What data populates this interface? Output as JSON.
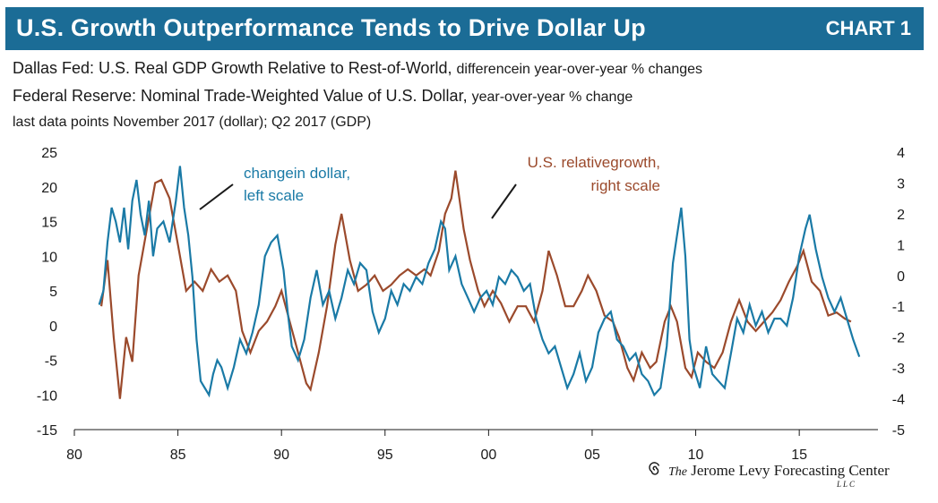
{
  "header": {
    "title": "U.S. Growth Outperformance Tends to Drive Dollar Up",
    "tag": "CHART 1"
  },
  "subtitle": {
    "line1_main": "Dallas Fed: U.S. Real GDP Growth Relative to Rest-of-World,",
    "line1_small": "differencein year-over-year % changes",
    "line2_main": "Federal Reserve: Nominal Trade-Weighted Value of U.S. Dollar,",
    "line2_small": "year-over-year % change",
    "line3": "last data points November 2017 (dollar); Q2 2017 (GDP)"
  },
  "logo": {
    "the": "The",
    "name": "Jerome Levy Forecasting Center",
    "llc": "LLC"
  },
  "colors": {
    "header_bg": "#1b6c96",
    "dollar": "#1a7aa6",
    "growth": "#9b4a2c"
  },
  "chart_data": {
    "type": "line",
    "x_range": [
      1980,
      2018.8
    ],
    "x_ticks": [
      1980,
      1985,
      1990,
      1995,
      2000,
      2005,
      2010,
      2015
    ],
    "x_tick_labels": [
      "80",
      "85",
      "90",
      "95",
      "00",
      "05",
      "10",
      "15"
    ],
    "left_axis": {
      "range": [
        -15,
        25
      ],
      "ticks": [
        -15,
        -10,
        -5,
        0,
        5,
        10,
        15,
        20,
        25
      ],
      "tick_labels": [
        "-15",
        "-10",
        "-5",
        "0",
        "5",
        "10",
        "15",
        "20",
        "25"
      ]
    },
    "right_axis": {
      "range": [
        -5,
        4
      ],
      "ticks": [
        -5,
        -4,
        -3,
        -2,
        -1,
        0,
        1,
        2,
        3,
        4
      ],
      "tick_labels": [
        "-5",
        "-4",
        "-3",
        "-2",
        "-1",
        "0",
        "1",
        "2",
        "3",
        "4"
      ]
    },
    "series": [
      {
        "name": "change in dollar",
        "axis": "left",
        "annotation": [
          "changein dollar,",
          "left scale"
        ],
        "points": [
          [
            1981.2,
            3
          ],
          [
            1981.4,
            5
          ],
          [
            1981.6,
            12
          ],
          [
            1981.8,
            17
          ],
          [
            1982.0,
            15
          ],
          [
            1982.2,
            12
          ],
          [
            1982.4,
            17
          ],
          [
            1982.6,
            11
          ],
          [
            1982.8,
            18
          ],
          [
            1983.0,
            21
          ],
          [
            1983.2,
            16
          ],
          [
            1983.4,
            13
          ],
          [
            1983.6,
            18
          ],
          [
            1983.8,
            10
          ],
          [
            1984.0,
            14
          ],
          [
            1984.3,
            15
          ],
          [
            1984.6,
            12
          ],
          [
            1984.9,
            18
          ],
          [
            1985.1,
            23
          ],
          [
            1985.3,
            17
          ],
          [
            1985.5,
            13
          ],
          [
            1985.7,
            7
          ],
          [
            1985.9,
            -2
          ],
          [
            1986.1,
            -8
          ],
          [
            1986.3,
            -9
          ],
          [
            1986.5,
            -10
          ],
          [
            1986.7,
            -7
          ],
          [
            1986.9,
            -5
          ],
          [
            1987.1,
            -6
          ],
          [
            1987.4,
            -9
          ],
          [
            1987.7,
            -6
          ],
          [
            1988.0,
            -2
          ],
          [
            1988.3,
            -4
          ],
          [
            1988.6,
            -1
          ],
          [
            1988.9,
            3
          ],
          [
            1989.2,
            10
          ],
          [
            1989.5,
            12
          ],
          [
            1989.8,
            13
          ],
          [
            1990.1,
            8
          ],
          [
            1990.3,
            2
          ],
          [
            1990.5,
            -3
          ],
          [
            1990.8,
            -5
          ],
          [
            1991.1,
            -2
          ],
          [
            1991.4,
            4
          ],
          [
            1991.7,
            8
          ],
          [
            1992.0,
            3
          ],
          [
            1992.3,
            5
          ],
          [
            1992.6,
            1
          ],
          [
            1992.9,
            4
          ],
          [
            1993.2,
            8
          ],
          [
            1993.5,
            6
          ],
          [
            1993.8,
            9
          ],
          [
            1994.1,
            8
          ],
          [
            1994.4,
            2
          ],
          [
            1994.7,
            -1
          ],
          [
            1995.0,
            1
          ],
          [
            1995.3,
            5
          ],
          [
            1995.6,
            3
          ],
          [
            1995.9,
            6
          ],
          [
            1996.2,
            5
          ],
          [
            1996.5,
            7
          ],
          [
            1996.8,
            6
          ],
          [
            1997.1,
            9
          ],
          [
            1997.4,
            11
          ],
          [
            1997.7,
            15
          ],
          [
            1997.9,
            14
          ],
          [
            1998.1,
            8
          ],
          [
            1998.4,
            10
          ],
          [
            1998.7,
            6
          ],
          [
            1999.0,
            4
          ],
          [
            1999.3,
            2
          ],
          [
            1999.6,
            4
          ],
          [
            1999.9,
            5
          ],
          [
            2000.2,
            3
          ],
          [
            2000.5,
            7
          ],
          [
            2000.8,
            6
          ],
          [
            2001.1,
            8
          ],
          [
            2001.4,
            7
          ],
          [
            2001.7,
            5
          ],
          [
            2002.0,
            6
          ],
          [
            2002.3,
            1
          ],
          [
            2002.6,
            -2
          ],
          [
            2002.9,
            -4
          ],
          [
            2003.2,
            -3
          ],
          [
            2003.5,
            -6
          ],
          [
            2003.8,
            -9
          ],
          [
            2004.1,
            -7
          ],
          [
            2004.4,
            -4
          ],
          [
            2004.7,
            -8
          ],
          [
            2005.0,
            -6
          ],
          [
            2005.3,
            -1
          ],
          [
            2005.6,
            1
          ],
          [
            2005.9,
            2
          ],
          [
            2006.2,
            -2
          ],
          [
            2006.5,
            -3
          ],
          [
            2006.8,
            -5
          ],
          [
            2007.1,
            -4
          ],
          [
            2007.4,
            -7
          ],
          [
            2007.7,
            -8
          ],
          [
            2008.0,
            -10
          ],
          [
            2008.3,
            -9
          ],
          [
            2008.6,
            -3
          ],
          [
            2008.9,
            9
          ],
          [
            2009.1,
            13
          ],
          [
            2009.3,
            17
          ],
          [
            2009.5,
            10
          ],
          [
            2009.7,
            -2
          ],
          [
            2009.9,
            -6
          ],
          [
            2010.2,
            -9
          ],
          [
            2010.5,
            -3
          ],
          [
            2010.8,
            -7
          ],
          [
            2011.1,
            -8
          ],
          [
            2011.4,
            -9
          ],
          [
            2011.7,
            -4
          ],
          [
            2012.0,
            1
          ],
          [
            2012.3,
            -1
          ],
          [
            2012.6,
            3
          ],
          [
            2012.9,
            0
          ],
          [
            2013.2,
            2
          ],
          [
            2013.5,
            -1
          ],
          [
            2013.8,
            1
          ],
          [
            2014.1,
            1
          ],
          [
            2014.4,
            0
          ],
          [
            2014.7,
            4
          ],
          [
            2015.0,
            10
          ],
          [
            2015.3,
            14
          ],
          [
            2015.5,
            16
          ],
          [
            2015.8,
            11
          ],
          [
            2016.1,
            7
          ],
          [
            2016.4,
            4
          ],
          [
            2016.7,
            2
          ],
          [
            2017.0,
            4
          ],
          [
            2017.3,
            1
          ],
          [
            2017.6,
            -2
          ],
          [
            2017.9,
            -4.5
          ]
        ]
      },
      {
        "name": "U.S. relative growth",
        "axis": "right",
        "annotation": [
          "U.S. relativegrowth,",
          "right scale"
        ],
        "points": [
          [
            1981.3,
            -1
          ],
          [
            1981.6,
            0.5
          ],
          [
            1981.9,
            -2
          ],
          [
            1982.2,
            -4
          ],
          [
            1982.5,
            -2
          ],
          [
            1982.8,
            -2.8
          ],
          [
            1983.1,
            0
          ],
          [
            1983.5,
            1.5
          ],
          [
            1983.9,
            3
          ],
          [
            1984.2,
            3.1
          ],
          [
            1984.6,
            2.5
          ],
          [
            1985.0,
            1
          ],
          [
            1985.4,
            -0.5
          ],
          [
            1985.8,
            -0.2
          ],
          [
            1986.2,
            -0.5
          ],
          [
            1986.6,
            0.2
          ],
          [
            1987.0,
            -0.2
          ],
          [
            1987.4,
            0
          ],
          [
            1987.8,
            -0.5
          ],
          [
            1988.1,
            -1.8
          ],
          [
            1988.5,
            -2.5
          ],
          [
            1988.9,
            -1.8
          ],
          [
            1989.3,
            -1.5
          ],
          [
            1989.7,
            -1
          ],
          [
            1990.0,
            -0.5
          ],
          [
            1990.4,
            -1.5
          ],
          [
            1990.8,
            -2.5
          ],
          [
            1991.2,
            -3.5
          ],
          [
            1991.4,
            -3.7
          ],
          [
            1991.8,
            -2.5
          ],
          [
            1992.2,
            -1
          ],
          [
            1992.6,
            1
          ],
          [
            1992.9,
            2
          ],
          [
            1993.3,
            0.5
          ],
          [
            1993.7,
            -0.5
          ],
          [
            1994.1,
            -0.3
          ],
          [
            1994.5,
            0
          ],
          [
            1994.9,
            -0.5
          ],
          [
            1995.3,
            -0.3
          ],
          [
            1995.7,
            0
          ],
          [
            1996.1,
            0.2
          ],
          [
            1996.5,
            0
          ],
          [
            1996.9,
            0.2
          ],
          [
            1997.2,
            0
          ],
          [
            1997.6,
            0.8
          ],
          [
            1997.9,
            2
          ],
          [
            1998.2,
            2.5
          ],
          [
            1998.4,
            3.4
          ],
          [
            1998.8,
            1.5
          ],
          [
            1999.1,
            0.5
          ],
          [
            1999.5,
            -0.5
          ],
          [
            1999.8,
            -1
          ],
          [
            2000.2,
            -0.5
          ],
          [
            2000.6,
            -0.9
          ],
          [
            2001.0,
            -1.5
          ],
          [
            2001.4,
            -1
          ],
          [
            2001.8,
            -1
          ],
          [
            2002.2,
            -1.5
          ],
          [
            2002.6,
            -0.5
          ],
          [
            2002.9,
            0.8
          ],
          [
            2003.3,
            0
          ],
          [
            2003.7,
            -1
          ],
          [
            2004.1,
            -1
          ],
          [
            2004.5,
            -0.5
          ],
          [
            2004.8,
            0
          ],
          [
            2005.2,
            -0.5
          ],
          [
            2005.6,
            -1.3
          ],
          [
            2006.0,
            -1.5
          ],
          [
            2006.3,
            -2
          ],
          [
            2006.7,
            -3
          ],
          [
            2007.0,
            -3.4
          ],
          [
            2007.4,
            -2.5
          ],
          [
            2007.8,
            -3
          ],
          [
            2008.1,
            -2.8
          ],
          [
            2008.5,
            -1.5
          ],
          [
            2008.8,
            -1
          ],
          [
            2009.1,
            -1.5
          ],
          [
            2009.5,
            -3
          ],
          [
            2009.8,
            -3.3
          ],
          [
            2010.1,
            -2.5
          ],
          [
            2010.5,
            -2.8
          ],
          [
            2010.9,
            -3
          ],
          [
            2011.3,
            -2.5
          ],
          [
            2011.7,
            -1.5
          ],
          [
            2012.1,
            -0.8
          ],
          [
            2012.5,
            -1.5
          ],
          [
            2012.9,
            -1.8
          ],
          [
            2013.3,
            -1.5
          ],
          [
            2013.7,
            -1.2
          ],
          [
            2014.1,
            -0.8
          ],
          [
            2014.5,
            -0.2
          ],
          [
            2014.9,
            0.3
          ],
          [
            2015.2,
            0.8
          ],
          [
            2015.6,
            -0.2
          ],
          [
            2016.0,
            -0.5
          ],
          [
            2016.4,
            -1.3
          ],
          [
            2016.8,
            -1.2
          ],
          [
            2017.2,
            -1.4
          ],
          [
            2017.5,
            -1.5
          ]
        ]
      }
    ]
  }
}
